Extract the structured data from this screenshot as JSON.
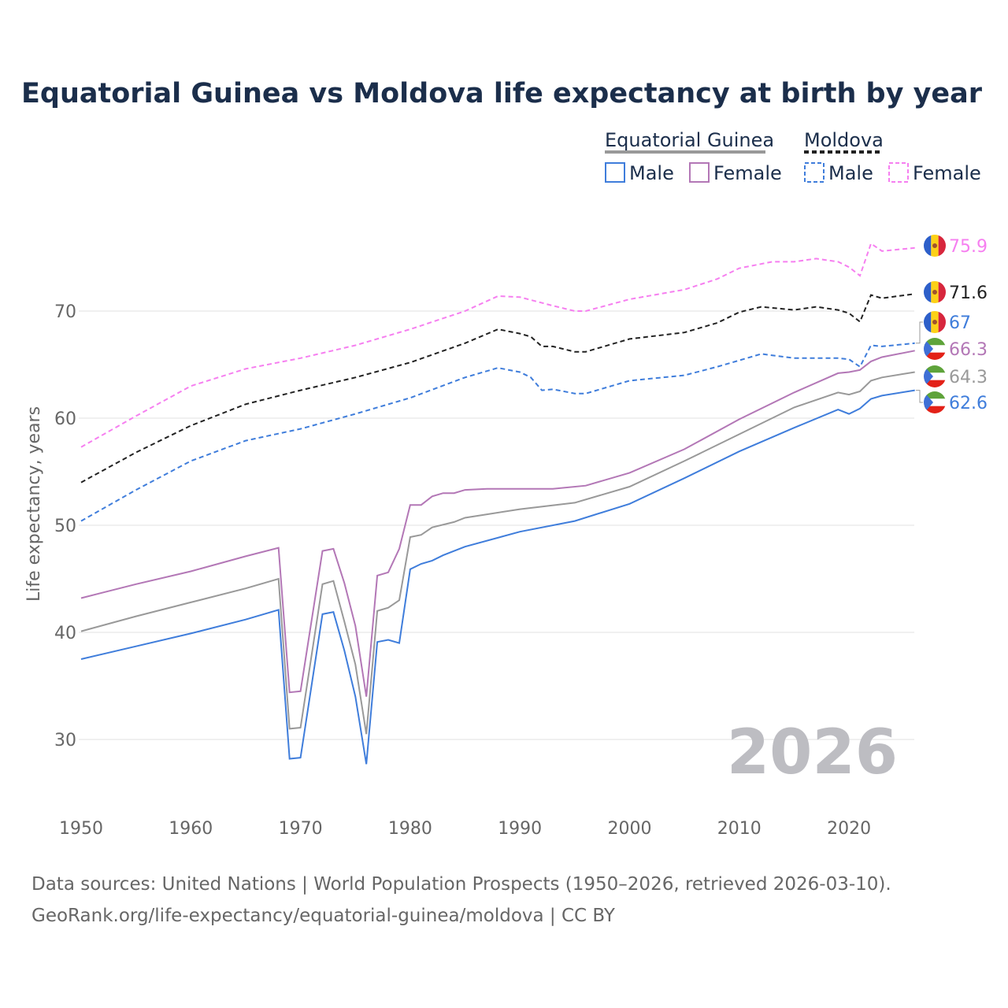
{
  "chart_data": {
    "type": "line",
    "title": "Equatorial Guinea vs Moldova life expectancy at birth by year",
    "xlabel": "",
    "ylabel": "Life expectancy, years",
    "xlim": [
      1950,
      2026
    ],
    "ylim": [
      25,
      78
    ],
    "x_ticks": [
      "1950",
      "1960",
      "1970",
      "1980",
      "1990",
      "2000",
      "2010",
      "2020"
    ],
    "y_ticks": [
      "30",
      "40",
      "50",
      "60",
      "70"
    ],
    "grid": true,
    "watermark_year": "2026",
    "legend": {
      "placement": "top-right",
      "groups": [
        {
          "name": "Equatorial Guinea",
          "items": [
            "Male",
            "Female"
          ]
        },
        {
          "name": "Moldova",
          "items": [
            "Male",
            "Female"
          ]
        }
      ]
    },
    "series": [
      {
        "name": "Moldova Female",
        "country": "Moldova",
        "color": "#f67ff0",
        "dashed": true,
        "end_label": "75.9",
        "points": [
          [
            1950,
            57.3
          ],
          [
            1955,
            60.2
          ],
          [
            1960,
            63.0
          ],
          [
            1965,
            64.6
          ],
          [
            1970,
            65.6
          ],
          [
            1975,
            66.8
          ],
          [
            1980,
            68.3
          ],
          [
            1985,
            70.0
          ],
          [
            1988,
            71.4
          ],
          [
            1990,
            71.3
          ],
          [
            1993,
            70.5
          ],
          [
            1995,
            70.0
          ],
          [
            1996,
            70.0
          ],
          [
            2000,
            71.1
          ],
          [
            2005,
            72.0
          ],
          [
            2008,
            73.0
          ],
          [
            2010,
            74.0
          ],
          [
            2013,
            74.6
          ],
          [
            2015,
            74.6
          ],
          [
            2017,
            74.9
          ],
          [
            2019,
            74.6
          ],
          [
            2020,
            74.1
          ],
          [
            2021,
            73.3
          ],
          [
            2022,
            76.3
          ],
          [
            2023,
            75.6
          ],
          [
            2026,
            75.9
          ]
        ]
      },
      {
        "name": "Moldova",
        "country": "Moldova",
        "color": "#222222",
        "dashed": true,
        "end_label": "71.6",
        "points": [
          [
            1950,
            54.0
          ],
          [
            1955,
            56.8
          ],
          [
            1960,
            59.3
          ],
          [
            1965,
            61.3
          ],
          [
            1970,
            62.6
          ],
          [
            1975,
            63.8
          ],
          [
            1980,
            65.2
          ],
          [
            1985,
            67.0
          ],
          [
            1988,
            68.3
          ],
          [
            1990,
            67.9
          ],
          [
            1991,
            67.6
          ],
          [
            1992,
            66.7
          ],
          [
            1993,
            66.7
          ],
          [
            1995,
            66.2
          ],
          [
            1996,
            66.2
          ],
          [
            2000,
            67.4
          ],
          [
            2005,
            68.0
          ],
          [
            2008,
            68.9
          ],
          [
            2010,
            69.9
          ],
          [
            2012,
            70.4
          ],
          [
            2015,
            70.1
          ],
          [
            2017,
            70.4
          ],
          [
            2019,
            70.1
          ],
          [
            2020,
            69.8
          ],
          [
            2021,
            69.0
          ],
          [
            2022,
            71.5
          ],
          [
            2023,
            71.2
          ],
          [
            2026,
            71.6
          ]
        ]
      },
      {
        "name": "Moldova Male",
        "country": "Moldova",
        "color": "#3f7ddb",
        "dashed": true,
        "end_label": "67",
        "points": [
          [
            1950,
            50.4
          ],
          [
            1955,
            53.3
          ],
          [
            1960,
            56.0
          ],
          [
            1965,
            57.9
          ],
          [
            1970,
            59.0
          ],
          [
            1975,
            60.4
          ],
          [
            1980,
            61.9
          ],
          [
            1985,
            63.8
          ],
          [
            1988,
            64.7
          ],
          [
            1990,
            64.3
          ],
          [
            1991,
            63.8
          ],
          [
            1992,
            62.6
          ],
          [
            1993,
            62.7
          ],
          [
            1995,
            62.3
          ],
          [
            1996,
            62.3
          ],
          [
            2000,
            63.5
          ],
          [
            2005,
            64.0
          ],
          [
            2008,
            64.8
          ],
          [
            2010,
            65.4
          ],
          [
            2012,
            66.0
          ],
          [
            2015,
            65.6
          ],
          [
            2019,
            65.6
          ],
          [
            2020,
            65.5
          ],
          [
            2021,
            64.8
          ],
          [
            2022,
            66.8
          ],
          [
            2023,
            66.7
          ],
          [
            2026,
            67.0
          ]
        ]
      },
      {
        "name": "Equatorial Guinea Female",
        "country": "Equatorial Guinea",
        "color": "#b377b6",
        "dashed": false,
        "end_label": "66.3",
        "points": [
          [
            1950,
            43.2
          ],
          [
            1955,
            44.5
          ],
          [
            1960,
            45.7
          ],
          [
            1965,
            47.1
          ],
          [
            1968,
            47.9
          ],
          [
            1969,
            34.4
          ],
          [
            1970,
            34.5
          ],
          [
            1972,
            47.6
          ],
          [
            1973,
            47.8
          ],
          [
            1974,
            44.6
          ],
          [
            1975,
            40.6
          ],
          [
            1976,
            34.0
          ],
          [
            1977,
            45.3
          ],
          [
            1978,
            45.6
          ],
          [
            1979,
            47.8
          ],
          [
            1980,
            51.9
          ],
          [
            1981,
            51.9
          ],
          [
            1982,
            52.7
          ],
          [
            1983,
            53.0
          ],
          [
            1984,
            53.0
          ],
          [
            1985,
            53.3
          ],
          [
            1987,
            53.4
          ],
          [
            1993,
            53.4
          ],
          [
            1996,
            53.7
          ],
          [
            2000,
            54.9
          ],
          [
            2005,
            57.1
          ],
          [
            2010,
            59.9
          ],
          [
            2015,
            62.4
          ],
          [
            2019,
            64.2
          ],
          [
            2020,
            64.3
          ],
          [
            2021,
            64.5
          ],
          [
            2022,
            65.3
          ],
          [
            2023,
            65.7
          ],
          [
            2026,
            66.3
          ]
        ]
      },
      {
        "name": "Equatorial Guinea",
        "country": "Equatorial Guinea",
        "color": "#999999",
        "dashed": false,
        "end_label": "64.3",
        "points": [
          [
            1950,
            40.1
          ],
          [
            1955,
            41.5
          ],
          [
            1960,
            42.8
          ],
          [
            1965,
            44.1
          ],
          [
            1968,
            45.0
          ],
          [
            1969,
            31.0
          ],
          [
            1970,
            31.1
          ],
          [
            1972,
            44.5
          ],
          [
            1973,
            44.8
          ],
          [
            1974,
            41.0
          ],
          [
            1975,
            37.0
          ],
          [
            1976,
            30.5
          ],
          [
            1977,
            42.0
          ],
          [
            1978,
            42.3
          ],
          [
            1979,
            43.0
          ],
          [
            1980,
            48.9
          ],
          [
            1981,
            49.1
          ],
          [
            1982,
            49.8
          ],
          [
            1984,
            50.3
          ],
          [
            1985,
            50.7
          ],
          [
            1990,
            51.5
          ],
          [
            1995,
            52.1
          ],
          [
            2000,
            53.6
          ],
          [
            2005,
            56.0
          ],
          [
            2010,
            58.5
          ],
          [
            2015,
            61.0
          ],
          [
            2019,
            62.4
          ],
          [
            2020,
            62.2
          ],
          [
            2021,
            62.5
          ],
          [
            2022,
            63.5
          ],
          [
            2023,
            63.8
          ],
          [
            2026,
            64.3
          ]
        ]
      },
      {
        "name": "Equatorial Guinea Male",
        "country": "Equatorial Guinea",
        "color": "#3f7ddb",
        "dashed": false,
        "end_label": "62.6",
        "points": [
          [
            1950,
            37.5
          ],
          [
            1955,
            38.7
          ],
          [
            1960,
            39.9
          ],
          [
            1965,
            41.2
          ],
          [
            1968,
            42.1
          ],
          [
            1969,
            28.2
          ],
          [
            1970,
            28.3
          ],
          [
            1972,
            41.7
          ],
          [
            1973,
            41.9
          ],
          [
            1974,
            38.3
          ],
          [
            1975,
            34.0
          ],
          [
            1976,
            27.7
          ],
          [
            1977,
            39.1
          ],
          [
            1978,
            39.3
          ],
          [
            1979,
            39.0
          ],
          [
            1980,
            45.9
          ],
          [
            1981,
            46.4
          ],
          [
            1982,
            46.7
          ],
          [
            1983,
            47.2
          ],
          [
            1985,
            48.0
          ],
          [
            1990,
            49.4
          ],
          [
            1995,
            50.4
          ],
          [
            2000,
            52.0
          ],
          [
            2005,
            54.4
          ],
          [
            2010,
            56.9
          ],
          [
            2015,
            59.1
          ],
          [
            2019,
            60.8
          ],
          [
            2020,
            60.4
          ],
          [
            2021,
            60.9
          ],
          [
            2022,
            61.8
          ],
          [
            2023,
            62.1
          ],
          [
            2026,
            62.6
          ]
        ]
      }
    ]
  },
  "footer": {
    "sources": "Data sources: United Nations | World Population Prospects (1950–2026, retrieved 2026-03-10).",
    "url": "GeoRank.org/life-expectancy/equatorial-guinea/moldova | CC BY"
  }
}
